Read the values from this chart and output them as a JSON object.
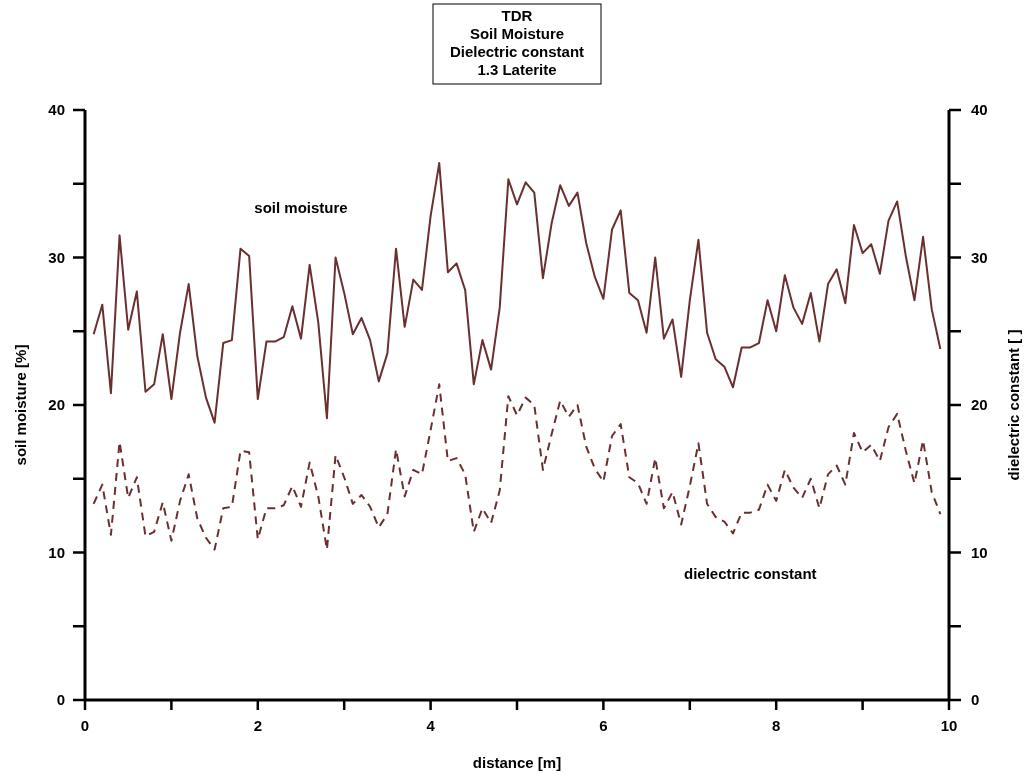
{
  "chart_data": {
    "type": "line",
    "title": "TDR\nSoil Moisture\nDielectric constant\n1.3 Laterite",
    "xlabel": "distance [m]",
    "ylabel": "soil moisture [%]",
    "y2label": "dielectric constant [ ]",
    "x": [
      0.1,
      0.2,
      0.3,
      0.4,
      0.5,
      0.6,
      0.7,
      0.8,
      0.9,
      1.0,
      1.1,
      1.2,
      1.3,
      1.4,
      1.5,
      1.6,
      1.7,
      1.8,
      1.9,
      2.0,
      2.1,
      2.2,
      2.3,
      2.4,
      2.5,
      2.6,
      2.7,
      2.8,
      2.9,
      3.0,
      3.1,
      3.2,
      3.3,
      3.4,
      3.5,
      3.6,
      3.7,
      3.8,
      3.9,
      4.0,
      4.1,
      4.2,
      4.3,
      4.4,
      4.5,
      4.6,
      4.7,
      4.8,
      4.9,
      5.0,
      5.1,
      5.2,
      5.3,
      5.4,
      5.5,
      5.6,
      5.7,
      5.8,
      5.9,
      6.0,
      6.1,
      6.2,
      6.3,
      6.4,
      6.5,
      6.6,
      6.7,
      6.8,
      6.9,
      7.0,
      7.1,
      7.2,
      7.3,
      7.4,
      7.5,
      7.6,
      7.7,
      7.8,
      7.9,
      8.0,
      8.1,
      8.2,
      8.3,
      8.4,
      8.5,
      8.6,
      8.7,
      8.8,
      8.9,
      9.0,
      9.1,
      9.2,
      9.3,
      9.4,
      9.5,
      9.6,
      9.7,
      9.8,
      9.9
    ],
    "series": [
      {
        "name": "soil moisture",
        "color": "#6b2f2f",
        "line_style": "solid",
        "values": [
          24.8,
          26.8,
          20.8,
          31.5,
          25.1,
          27.7,
          20.9,
          21.4,
          24.8,
          20.4,
          24.9,
          28.2,
          23.3,
          20.5,
          18.8,
          24.2,
          24.4,
          30.6,
          30.1,
          20.4,
          24.3,
          24.3,
          24.6,
          26.7,
          24.5,
          29.5,
          25.6,
          19.1,
          30.0,
          27.6,
          24.8,
          25.9,
          24.4,
          21.6,
          23.5,
          30.6,
          25.3,
          28.5,
          27.8,
          32.8,
          36.4,
          29.0,
          29.6,
          27.8,
          21.4,
          24.4,
          22.4,
          26.6,
          35.3,
          33.6,
          35.1,
          34.4,
          28.6,
          32.3,
          34.9,
          33.5,
          34.4,
          31.0,
          28.7,
          27.2,
          31.9,
          33.2,
          27.6,
          27.1,
          24.9,
          30.0,
          24.5,
          25.8,
          21.9,
          27.1,
          31.2,
          24.9,
          23.1,
          22.6,
          21.2,
          23.9,
          23.9,
          24.2,
          27.1,
          25.0,
          28.8,
          26.6,
          25.5,
          27.6,
          24.3,
          28.2,
          29.2,
          26.9,
          32.2,
          30.3,
          30.9,
          28.9,
          32.5,
          33.8,
          30.1,
          27.1,
          31.4,
          26.5,
          23.8
        ]
      },
      {
        "name": "dielectric constant",
        "color": "#6b2f2f",
        "line_style": "dashed",
        "axis": "y2",
        "values": [
          13.3,
          14.6,
          11.2,
          17.5,
          13.7,
          15.1,
          11.1,
          11.4,
          13.4,
          10.8,
          13.5,
          15.3,
          12.3,
          11.0,
          10.2,
          13.0,
          13.1,
          16.9,
          16.8,
          10.9,
          13.0,
          13.0,
          13.2,
          14.5,
          13.1,
          16.1,
          13.8,
          10.2,
          16.6,
          15.1,
          13.3,
          13.9,
          13.1,
          11.7,
          12.6,
          17.0,
          13.8,
          15.6,
          15.3,
          18.3,
          21.4,
          16.2,
          16.4,
          15.3,
          11.4,
          13.0,
          12.0,
          14.2,
          20.6,
          19.3,
          20.5,
          20.0,
          15.6,
          18.0,
          20.3,
          19.2,
          20.0,
          17.2,
          15.7,
          14.8,
          17.9,
          18.7,
          15.1,
          14.7,
          13.3,
          16.4,
          13.0,
          14.1,
          11.9,
          14.5,
          17.4,
          13.3,
          12.4,
          12.1,
          11.3,
          12.7,
          12.7,
          12.9,
          14.6,
          13.5,
          15.6,
          14.4,
          13.7,
          15.0,
          13.0,
          15.3,
          15.9,
          14.6,
          18.1,
          16.8,
          17.3,
          16.2,
          18.5,
          19.4,
          16.9,
          14.7,
          17.6,
          14.1,
          12.6
        ]
      }
    ],
    "xlim": [
      0,
      10
    ],
    "xticks": [
      0,
      {
        "value": 1,
        "label": null
      },
      2,
      {
        "value": 3,
        "label": null
      },
      4,
      {
        "value": 5,
        "label": null
      },
      6,
      {
        "value": 7,
        "label": null
      },
      8,
      {
        "value": 9,
        "label": null
      },
      10
    ],
    "ylim": [
      0,
      40
    ],
    "yticks": [
      0,
      {
        "value": 5,
        "label": null
      },
      10,
      {
        "value": 15,
        "label": null
      },
      20,
      {
        "value": 25,
        "label": null
      },
      30,
      {
        "value": 35,
        "label": null
      },
      40
    ],
    "y2lim": [
      0,
      40
    ],
    "y2ticks": [
      0,
      {
        "value": 5,
        "label": null
      },
      10,
      {
        "value": 15,
        "label": null
      },
      20,
      {
        "value": 25,
        "label": null
      },
      30,
      {
        "value": 35,
        "label": null
      },
      40
    ],
    "grid": false,
    "marker": "none"
  }
}
